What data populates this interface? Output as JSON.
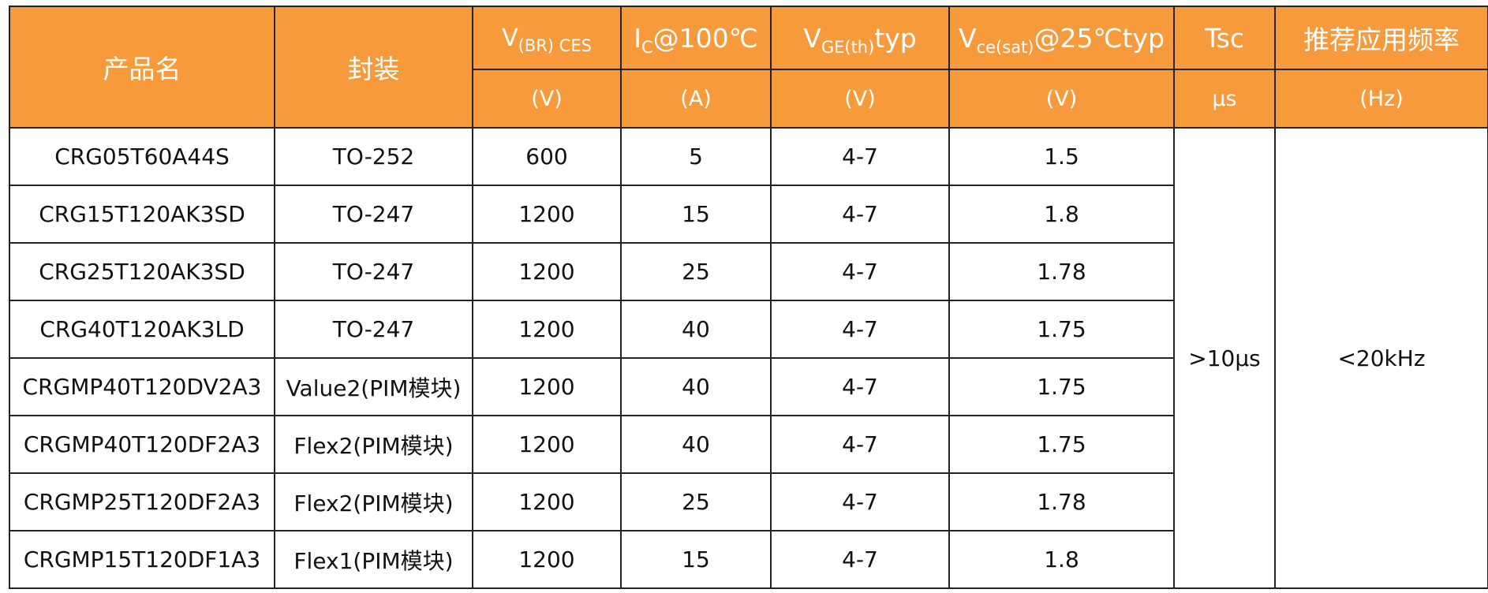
{
  "header": {
    "product_name": "产品名",
    "package": "封装",
    "vbr": {
      "main": "V",
      "sub": "(BR) CES",
      "unit": "(V)"
    },
    "ic": {
      "main": "I",
      "sub": "C",
      "tail": "@100℃",
      "unit": "(A)"
    },
    "vge": {
      "main": "V",
      "sub": "GE(th)",
      "tail": "typ",
      "unit": "(V)"
    },
    "vce": {
      "main": "V",
      "sub": "ce(sat)",
      "tail": "@25℃typ",
      "unit": "(V)"
    },
    "tsc": {
      "label": "Tsc",
      "unit": "μs"
    },
    "freq": {
      "label": "推荐应用频率",
      "unit": "(Hz)"
    }
  },
  "rows": [
    {
      "name": "CRG05T60A44S",
      "package": "TO-252",
      "vbr": "600",
      "ic": "5",
      "vge": "4-7",
      "vce": "1.5"
    },
    {
      "name": "CRG15T120AK3SD",
      "package": "TO-247",
      "vbr": "1200",
      "ic": "15",
      "vge": "4-7",
      "vce": "1.8"
    },
    {
      "name": "CRG25T120AK3SD",
      "package": "TO-247",
      "vbr": "1200",
      "ic": "25",
      "vge": "4-7",
      "vce": "1.78"
    },
    {
      "name": "CRG40T120AK3LD",
      "package": "TO-247",
      "vbr": "1200",
      "ic": "40",
      "vge": "4-7",
      "vce": "1.75"
    },
    {
      "name": "CRGMP40T120DV2A3",
      "package": "Value2(PIM模块)",
      "vbr": "1200",
      "ic": "40",
      "vge": "4-7",
      "vce": "1.75"
    },
    {
      "name": "CRGMP40T120DF2A3",
      "package": "Flex2(PIM模块)",
      "vbr": "1200",
      "ic": "40",
      "vge": "4-7",
      "vce": "1.75"
    },
    {
      "name": "CRGMP25T120DF2A3",
      "package": "Flex2(PIM模块)",
      "vbr": "1200",
      "ic": "25",
      "vge": "4-7",
      "vce": "1.78"
    },
    {
      "name": "CRGMP15T120DF1A3",
      "package": "Flex1(PIM模块)",
      "vbr": "1200",
      "ic": "15",
      "vge": "4-7",
      "vce": "1.8"
    }
  ],
  "shared": {
    "tsc": ">10μs",
    "freq": "<20kHz"
  }
}
